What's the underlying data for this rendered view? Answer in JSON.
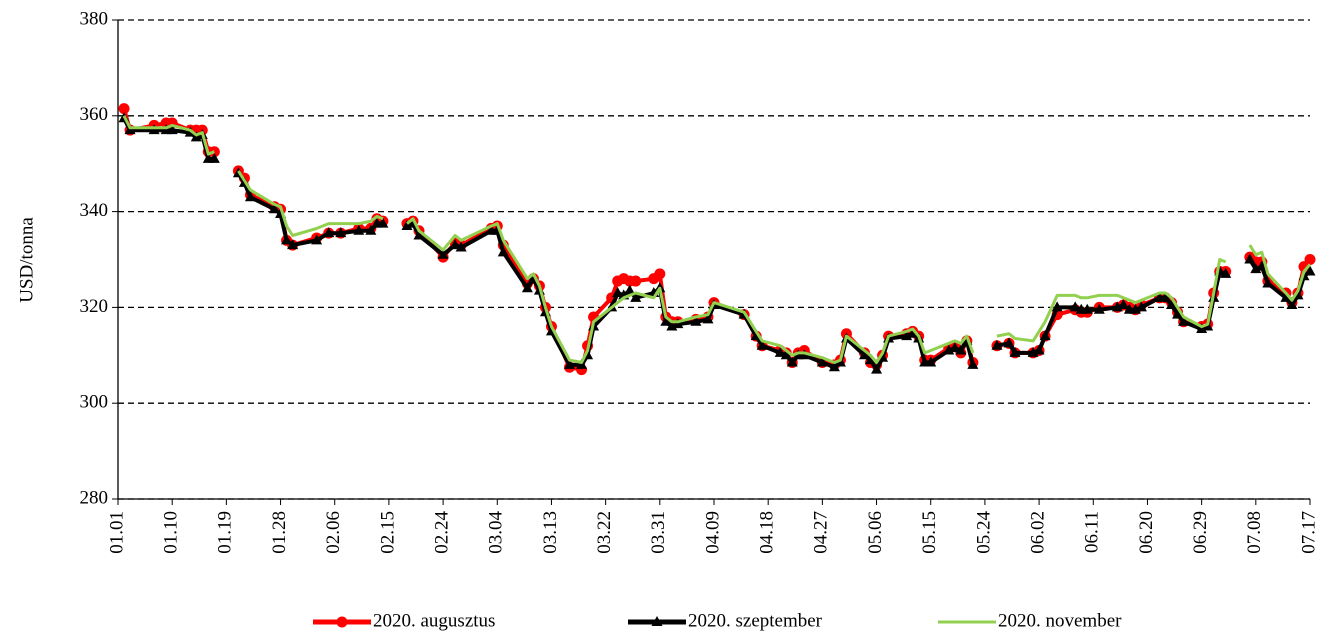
{
  "chart_data": {
    "type": "line",
    "y_label": "USD/tonna",
    "x": [
      "01.02",
      "01.03",
      "01.07",
      "01.09",
      "01.10",
      "01.13",
      "01.14",
      "01.15",
      "01.16",
      "01.17",
      "01.20",
      "01.21",
      "01.22",
      "01.23",
      "01.27",
      "01.28",
      "01.29",
      "01.30",
      "02.03",
      "02.05",
      "02.07",
      "02.10",
      "02.12",
      "02.13",
      "02.14",
      "02.17",
      "02.18",
      "02.19",
      "02.20",
      "02.24",
      "02.26",
      "02.27",
      "03.03",
      "03.04",
      "03.05",
      "03.09",
      "03.10",
      "03.11",
      "03.12",
      "03.13",
      "03.16",
      "03.18",
      "03.19",
      "03.20",
      "03.23",
      "03.24",
      "03.25",
      "03.26",
      "03.27",
      "03.30",
      "03.31",
      "04.01",
      "04.02",
      "04.03",
      "04.06",
      "04.08",
      "04.09",
      "04.14",
      "04.16",
      "04.17",
      "04.20",
      "04.21",
      "04.22",
      "04.23",
      "04.24",
      "04.27",
      "04.29",
      "04.30",
      "05.01",
      "05.04",
      "05.05",
      "05.06",
      "05.07",
      "05.08",
      "05.11",
      "05.12",
      "05.13",
      "05.14",
      "05.15",
      "05.18",
      "05.19",
      "05.20",
      "05.21",
      "05.22",
      "05.25",
      "05.26",
      "05.28",
      "05.29",
      "06.01",
      "06.02",
      "06.03",
      "06.05",
      "06.08",
      "06.09",
      "06.10",
      "06.12",
      "06.15",
      "06.16",
      "06.17",
      "06.18",
      "06.19",
      "06.22",
      "06.23",
      "06.24",
      "06.25",
      "06.26",
      "06.29",
      "06.30",
      "07.01",
      "07.02",
      "07.03",
      "07.06",
      "07.07",
      "07.08",
      "07.09",
      "07.10",
      "07.13",
      "07.14",
      "07.15",
      "07.16",
      "07.17"
    ],
    "series": [
      {
        "name": "2020. augusztus",
        "color": "#ff0000",
        "marker": "circle",
        "values": [
          361.5,
          357,
          358,
          358.5,
          358.5,
          357,
          357,
          357,
          352.5,
          352.5,
          null,
          348.5,
          347,
          343.5,
          341,
          340.5,
          334,
          333,
          334.5,
          335.5,
          335.5,
          336.5,
          336.5,
          338.5,
          338,
          null,
          337.5,
          338,
          336,
          330.5,
          333.5,
          333,
          336.5,
          337,
          333,
          325,
          326,
          324.5,
          320,
          316,
          307.5,
          307,
          312,
          318,
          322,
          325.5,
          326,
          325.5,
          325.5,
          326,
          327,
          318,
          317,
          317,
          317.5,
          318,
          321,
          318.5,
          314,
          312,
          311,
          310.5,
          308.5,
          310.5,
          311,
          308.5,
          308,
          309,
          314.5,
          310.5,
          308.5,
          308,
          310,
          314,
          314.5,
          315,
          314,
          309,
          309,
          311.5,
          312,
          310.5,
          313,
          308.5,
          null,
          312,
          312.5,
          310.5,
          310.5,
          311,
          314,
          318.5,
          319.5,
          319,
          319,
          320,
          320,
          320.5,
          320,
          319.5,
          320.5,
          322,
          322,
          321,
          319,
          317,
          316,
          316.5,
          323,
          327.5,
          327.5,
          null,
          330.5,
          329.5,
          329.5,
          325.5,
          323,
          321,
          323,
          328.5,
          330
        ]
      },
      {
        "name": "2020. szeptember",
        "color": "#000000",
        "marker": "triangle",
        "values": [
          359.5,
          357,
          357,
          357,
          357,
          356.5,
          355.5,
          356,
          351,
          351,
          null,
          348,
          346,
          343,
          340.5,
          339.5,
          334,
          333,
          334,
          335.5,
          335.5,
          336,
          336,
          337.5,
          337.5,
          null,
          337,
          337.5,
          335,
          331,
          333,
          332.5,
          336,
          336,
          331.5,
          324,
          326,
          323.5,
          319,
          315,
          308,
          308,
          310,
          316,
          320,
          323,
          322.5,
          323.5,
          322,
          323,
          324,
          317,
          316,
          316.5,
          317,
          317.5,
          320.5,
          318.5,
          314,
          312,
          310.5,
          310,
          308.5,
          310,
          310,
          308.5,
          307.5,
          308.5,
          313.5,
          310,
          309,
          307,
          309.5,
          313.5,
          314,
          314.5,
          313.5,
          308.5,
          308.5,
          311,
          311.5,
          311,
          313,
          308,
          null,
          312,
          312.5,
          310.5,
          310.5,
          311,
          314,
          320,
          320,
          319.5,
          319.5,
          319.5,
          320,
          320.5,
          319.5,
          319.5,
          320,
          322,
          322,
          320.5,
          318.5,
          317,
          315.5,
          316,
          322,
          327.5,
          327,
          null,
          330,
          328,
          328.5,
          325,
          322,
          320.5,
          322.5,
          326.5,
          327.5
        ]
      },
      {
        "name": "2020. november",
        "color": "#92d050",
        "marker": "none",
        "values": [
          360,
          357.5,
          357.5,
          357.5,
          358,
          357,
          356,
          356.5,
          352,
          352.5,
          null,
          348.5,
          346.5,
          344.5,
          341.5,
          341,
          337,
          335,
          336.5,
          337.5,
          337.5,
          337.5,
          338,
          339,
          338.5,
          null,
          337.5,
          338.5,
          336,
          332,
          335,
          334,
          337,
          337.5,
          334,
          326,
          327,
          324.5,
          320,
          316,
          309,
          308.5,
          311,
          317,
          320,
          321,
          322,
          322.5,
          323,
          322,
          324,
          318,
          317,
          317,
          318,
          318.5,
          321,
          319,
          315,
          313,
          312,
          311,
          310,
          310.5,
          310.5,
          309.5,
          308.5,
          309,
          314,
          311,
          310,
          308.5,
          310.5,
          314,
          315,
          315.5,
          314,
          310.5,
          311,
          312.5,
          313,
          312.5,
          314,
          310.5,
          null,
          314,
          314.5,
          313.5,
          313,
          315,
          317,
          322.5,
          322.5,
          322,
          322,
          322.5,
          322.5,
          322,
          321.5,
          321,
          321.5,
          323,
          323,
          322,
          320,
          318,
          316,
          316.5,
          323,
          330,
          329.5,
          null,
          333,
          331,
          331.5,
          327,
          323,
          321.5,
          323.5,
          327.5,
          329
        ]
      }
    ],
    "xlim": [
      "01.01",
      "07.17"
    ],
    "xticks": [
      "01.01",
      "01.10",
      "01.19",
      "01.28",
      "02.06",
      "02.15",
      "02.24",
      "03.04",
      "03.13",
      "03.22",
      "03.31",
      "04.09",
      "04.18",
      "04.27",
      "05.06",
      "05.15",
      "05.24",
      "06.02",
      "06.11",
      "06.20",
      "06.29",
      "07.08",
      "07.17"
    ],
    "ylim": [
      280,
      380
    ],
    "yticks": [
      280,
      300,
      320,
      340,
      360,
      380
    ],
    "grid": true,
    "legend": "bottom"
  }
}
